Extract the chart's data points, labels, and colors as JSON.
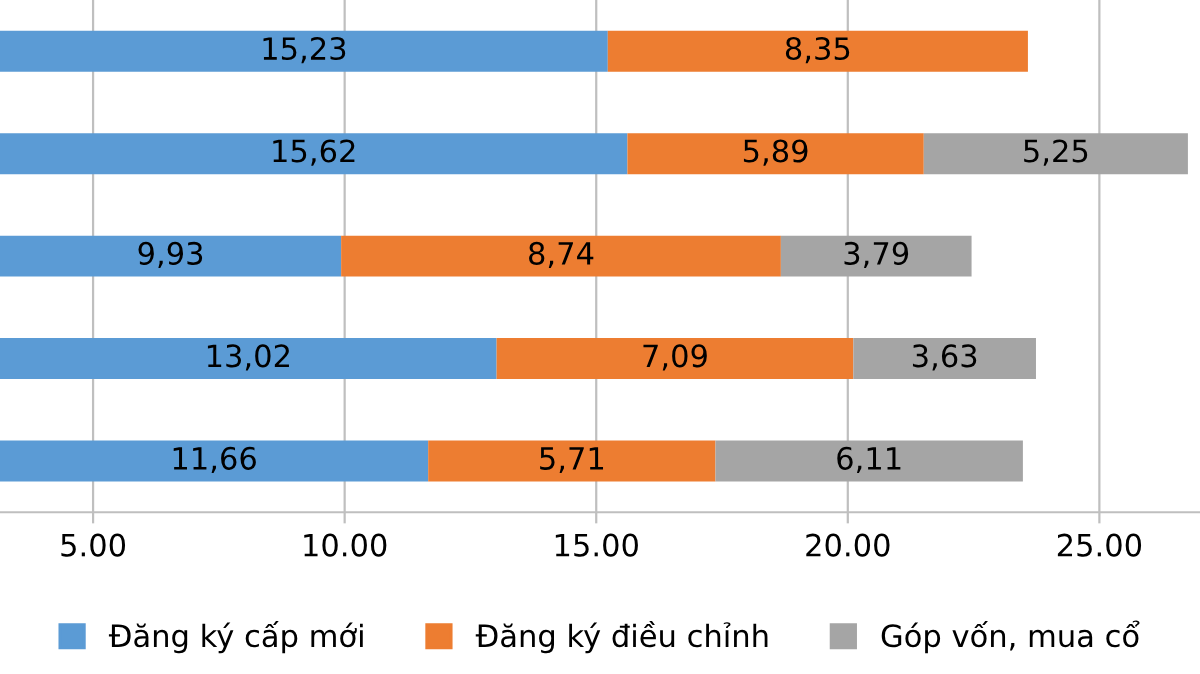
{
  "chart_data": {
    "type": "bar",
    "orientation": "horizontal",
    "stacked": true,
    "categories": [
      null,
      null,
      null,
      null,
      null
    ],
    "series": [
      {
        "name": "Đăng ký cấp mới",
        "color": "#5b9bd5",
        "values": [
          15.23,
          15.62,
          9.93,
          13.02,
          11.66
        ],
        "value_labels": [
          "15,23",
          "15,62",
          "9,93",
          "13,02",
          "11,66"
        ]
      },
      {
        "name": "Đăng ký điều chỉnh",
        "color": "#ed7d31",
        "values": [
          8.35,
          5.89,
          8.74,
          7.09,
          5.71
        ],
        "value_labels": [
          "8,35",
          "5,89",
          "8,74",
          "7,09",
          "5,71"
        ]
      },
      {
        "name": "Góp vốn, mua cổ",
        "color": "#a5a5a5",
        "values": [
          null,
          5.25,
          3.79,
          3.63,
          6.11
        ],
        "value_labels": [
          null,
          "5,25",
          "3,79",
          "3,63",
          "6,11"
        ]
      }
    ],
    "xlim": [
      3.15,
      27
    ],
    "xticks": [
      {
        "value": 5,
        "label": "5.00"
      },
      {
        "value": 10,
        "label": "10.00"
      },
      {
        "value": 15,
        "label": "15.00"
      },
      {
        "value": 20,
        "label": "20.00"
      },
      {
        "value": 25,
        "label": "25.00"
      }
    ],
    "grid": "x",
    "legend": "bottom"
  }
}
